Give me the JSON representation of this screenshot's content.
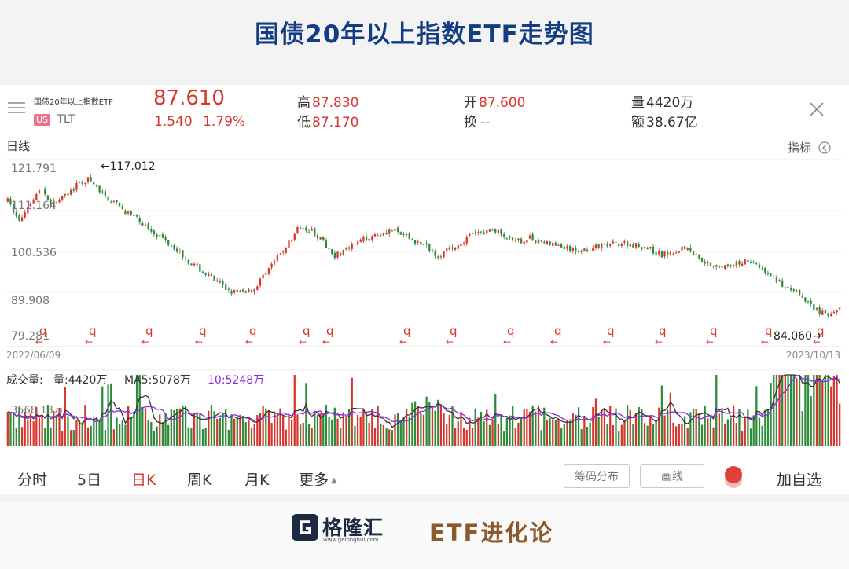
{
  "page_title": "国债20年以上指数ETF走势图",
  "quote": {
    "name": "国债20年以上指数ETF",
    "market_badge": "US",
    "ticker": "TLT",
    "price": "87.610",
    "change": "1.540",
    "change_pct": "1.79%",
    "high_label": "高",
    "high": "87.830",
    "low_label": "低",
    "low": "87.170",
    "open_label": "开",
    "open": "87.600",
    "turnover_label": "换",
    "turnover": "--",
    "volume_label": "量",
    "volume": "4420万",
    "amount_label": "额",
    "amount": "38.67亿"
  },
  "chart_header": {
    "period_label": "日线",
    "indicator_label": "指标"
  },
  "chart_data": {
    "type": "candlestick",
    "y_ticks": [
      "121.791",
      "111.164",
      "100.536",
      "89.908",
      "79.281"
    ],
    "ylim": [
      79.281,
      121.791
    ],
    "x_start": "2022/06/09",
    "x_end": "2023/10/13",
    "max_annotation": "←117.012",
    "min_annotation": "84.060→",
    "close_trend": [
      [
        0,
        112
      ],
      [
        4,
        107
      ],
      [
        8,
        112
      ],
      [
        12,
        115
      ],
      [
        15,
        111
      ],
      [
        20,
        113
      ],
      [
        24,
        115.5
      ],
      [
        28,
        117
      ],
      [
        34,
        113
      ],
      [
        40,
        110
      ],
      [
        46,
        107
      ],
      [
        52,
        104
      ],
      [
        58,
        101
      ],
      [
        64,
        97
      ],
      [
        70,
        94
      ],
      [
        76,
        91
      ],
      [
        80,
        90
      ],
      [
        86,
        91
      ],
      [
        90,
        95
      ],
      [
        96,
        100
      ],
      [
        102,
        106
      ],
      [
        106,
        105
      ],
      [
        110,
        102
      ],
      [
        114,
        99
      ],
      [
        120,
        101
      ],
      [
        126,
        103.5
      ],
      [
        134,
        105
      ],
      [
        140,
        103
      ],
      [
        146,
        101
      ],
      [
        150,
        99
      ],
      [
        156,
        101
      ],
      [
        162,
        104
      ],
      [
        170,
        105
      ],
      [
        176,
        102
      ],
      [
        182,
        103
      ],
      [
        190,
        101.5
      ],
      [
        198,
        100
      ],
      [
        206,
        101
      ],
      [
        214,
        102
      ],
      [
        222,
        101
      ],
      [
        228,
        99
      ],
      [
        236,
        101
      ],
      [
        244,
        97
      ],
      [
        252,
        96
      ],
      [
        258,
        98
      ],
      [
        264,
        95
      ],
      [
        270,
        92
      ],
      [
        274,
        91
      ],
      [
        278,
        88
      ],
      [
        282,
        86
      ],
      [
        286,
        84.5
      ],
      [
        290,
        86
      ]
    ],
    "volume_label": "成交量:",
    "volume_value": "量:4420万",
    "ma5_label": "MA5:5078万",
    "ma10_label": "10:5248万",
    "volume_axis_label": "3568.13万",
    "markers": [
      "q",
      "q",
      "q",
      "q",
      "q",
      "q",
      "q",
      "q",
      "q",
      "q",
      "q",
      "q",
      "q",
      "q",
      "q",
      "q"
    ]
  },
  "tabs": [
    "分时",
    "5日",
    "日K",
    "周K",
    "月K",
    "更多"
  ],
  "active_tab": "日K",
  "buttons": {
    "chip": "筹码分布",
    "draw": "画线",
    "add": "加自选"
  },
  "footer": {
    "brand": "格隆汇",
    "brand_url": "www.gelonghui.com",
    "slogan": "ETF进化论"
  },
  "colors": {
    "up": "#d9342b",
    "down": "#2e8b3a",
    "ma5": "#333333",
    "ma10": "#8a2be2",
    "title": "#123d83"
  }
}
